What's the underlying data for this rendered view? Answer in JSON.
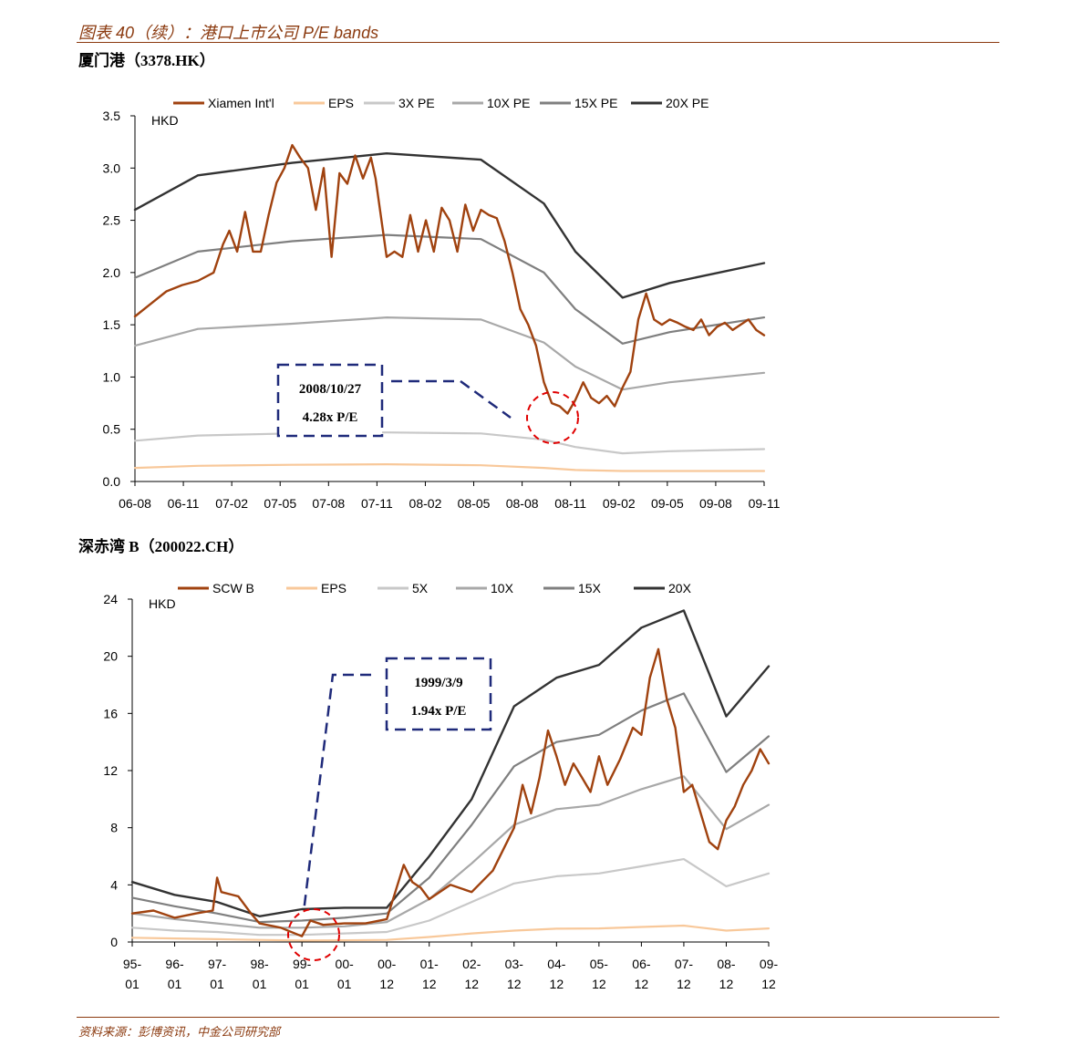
{
  "figure": {
    "title": "图表 40（续）：港口上市公司 P/E bands",
    "source": "资料来源：彭博资讯，中金公司研究部"
  },
  "chart_data": [
    {
      "type": "line",
      "heading": "厦门港（3378.HK）",
      "ylabel": "HKD",
      "ylim": [
        0,
        3.5
      ],
      "yticks": [
        "0.0",
        "0.5",
        "1.0",
        "1.5",
        "2.0",
        "2.5",
        "3.0",
        "3.5"
      ],
      "xticks": [
        "06-08",
        "06-11",
        "07-02",
        "07-05",
        "07-08",
        "07-11",
        "08-02",
        "08-05",
        "08-08",
        "08-11",
        "09-02",
        "09-05",
        "09-08",
        "09-11"
      ],
      "xlim": [
        0,
        40
      ],
      "legend_position": "top",
      "series": [
        {
          "name": "Xiamen Int'l",
          "color": "#a0420f",
          "width": 2.4,
          "x": [
            0,
            1,
            2,
            3,
            4,
            5,
            5.6,
            6,
            6.5,
            7,
            7.5,
            8,
            8.5,
            9,
            9.5,
            10,
            10.5,
            11,
            11.5,
            12,
            12.5,
            13,
            13.5,
            14,
            14.5,
            15,
            15.3,
            16,
            16.5,
            17,
            17.5,
            18,
            18.5,
            19,
            19.5,
            20,
            20.5,
            21,
            21.5,
            22,
            22.5,
            23,
            23.5,
            24,
            24.5,
            25,
            25.5,
            26,
            26.5,
            27,
            27.5,
            28,
            28.5,
            29,
            29.5,
            30,
            30.5,
            31,
            31.5,
            32,
            32.5,
            33,
            33.5,
            34,
            34.5,
            35,
            35.5,
            36,
            36.5,
            37,
            37.5,
            38,
            38.5,
            39,
            39.5,
            40
          ],
          "y": [
            1.58,
            1.7,
            1.82,
            1.88,
            1.92,
            2.0,
            2.27,
            2.4,
            2.2,
            2.58,
            2.2,
            2.2,
            2.55,
            2.86,
            3.0,
            3.22,
            3.1,
            3.0,
            2.6,
            3.0,
            2.15,
            2.95,
            2.85,
            3.12,
            2.9,
            3.1,
            2.9,
            2.15,
            2.2,
            2.15,
            2.55,
            2.2,
            2.5,
            2.2,
            2.62,
            2.5,
            2.2,
            2.65,
            2.4,
            2.6,
            2.55,
            2.52,
            2.3,
            2.0,
            1.65,
            1.5,
            1.3,
            0.95,
            0.75,
            0.72,
            0.65,
            0.78,
            0.95,
            0.8,
            0.75,
            0.82,
            0.72,
            0.9,
            1.05,
            1.55,
            1.8,
            1.55,
            1.5,
            1.55,
            1.52,
            1.48,
            1.45,
            1.55,
            1.4,
            1.48,
            1.52,
            1.45,
            1.5,
            1.55,
            1.45,
            1.4
          ]
        },
        {
          "name": "EPS",
          "color": "#f8c89a",
          "width": 2.2,
          "x": [
            0,
            4,
            10,
            16,
            22,
            26,
            28,
            31,
            34,
            40
          ],
          "y": [
            0.13,
            0.15,
            0.16,
            0.165,
            0.155,
            0.13,
            0.11,
            0.1,
            0.1,
            0.1
          ]
        },
        {
          "name": "3X PE",
          "color": "#c8c8c8",
          "width": 2.2,
          "x": [
            0,
            4,
            10,
            16,
            22,
            26,
            28,
            31,
            34,
            40
          ],
          "y": [
            0.39,
            0.44,
            0.46,
            0.47,
            0.46,
            0.4,
            0.33,
            0.27,
            0.29,
            0.31
          ]
        },
        {
          "name": "10X PE",
          "color": "#a8a8a8",
          "width": 2.2,
          "x": [
            0,
            4,
            10,
            16,
            22,
            26,
            28,
            31,
            34,
            40
          ],
          "y": [
            1.3,
            1.46,
            1.51,
            1.57,
            1.55,
            1.33,
            1.1,
            0.88,
            0.95,
            1.04
          ]
        },
        {
          "name": "15X PE",
          "color": "#7f7f7f",
          "width": 2.2,
          "x": [
            0,
            4,
            10,
            16,
            22,
            26,
            28,
            31,
            34,
            40
          ],
          "y": [
            1.95,
            2.2,
            2.3,
            2.36,
            2.32,
            2.0,
            1.65,
            1.32,
            1.43,
            1.57
          ]
        },
        {
          "name": "20X PE",
          "color": "#333333",
          "width": 2.4,
          "x": [
            0,
            4,
            10,
            16,
            22,
            26,
            28,
            31,
            34,
            40
          ],
          "y": [
            2.6,
            2.93,
            3.05,
            3.14,
            3.08,
            2.66,
            2.2,
            1.76,
            1.9,
            2.09
          ]
        }
      ],
      "annotation": {
        "lines": [
          "2008/10/27",
          "4.28x P/E"
        ]
      }
    },
    {
      "type": "line",
      "heading": "深赤湾 B（200022.CH）",
      "ylabel": "HKD",
      "ylim": [
        0,
        24
      ],
      "yticks": [
        "0",
        "4",
        "8",
        "12",
        "16",
        "20",
        "24"
      ],
      "xticks": [
        "95-01",
        "96-01",
        "97-01",
        "98-01",
        "99-01",
        "00-01",
        "00-12",
        "01-12",
        "02-12",
        "03-12",
        "04-12",
        "05-12",
        "06-12",
        "07-12",
        "08-12",
        "09-12"
      ],
      "xlim": [
        0,
        15
      ],
      "legend_position": "top",
      "series": [
        {
          "name": "SCW B",
          "color": "#a0420f",
          "width": 2.4,
          "x": [
            0,
            0.5,
            1,
            1.5,
            1.9,
            2.0,
            2.1,
            2.5,
            2.8,
            3.0,
            3.5,
            4.0,
            4.2,
            4.5,
            5.0,
            5.5,
            6.0,
            6.2,
            6.4,
            6.6,
            6.8,
            7.0,
            7.5,
            8.0,
            8.5,
            9.0,
            9.2,
            9.4,
            9.6,
            9.8,
            10.0,
            10.2,
            10.4,
            10.6,
            10.8,
            11.0,
            11.2,
            11.5,
            11.8,
            12.0,
            12.2,
            12.4,
            12.6,
            12.8,
            13.0,
            13.2,
            13.4,
            13.6,
            13.8,
            14.0,
            14.2,
            14.4,
            14.6,
            14.8,
            15.0
          ],
          "y": [
            2,
            2.2,
            1.7,
            2.0,
            2.2,
            4.5,
            3.5,
            3.2,
            2.0,
            1.3,
            1.0,
            0.4,
            1.5,
            1.2,
            1.3,
            1.3,
            1.6,
            3.5,
            5.4,
            4.2,
            3.8,
            3.0,
            4.0,
            3.5,
            5.0,
            8.0,
            11.0,
            9.0,
            11.5,
            14.8,
            13.0,
            11.0,
            12.5,
            11.5,
            10.5,
            13.0,
            11.0,
            12.8,
            15.0,
            14.5,
            18.5,
            20.5,
            17.0,
            15.0,
            10.5,
            11.0,
            9.0,
            7.0,
            6.5,
            8.5,
            9.5,
            11.0,
            12.0,
            13.5,
            12.5
          ]
        },
        {
          "name": "EPS",
          "color": "#f8c89a",
          "width": 2.2,
          "x": [
            0,
            1,
            2,
            3,
            4,
            5,
            6,
            7,
            8,
            9,
            10,
            11,
            12,
            13,
            14,
            15
          ],
          "y": [
            0.3,
            0.25,
            0.2,
            0.15,
            0.1,
            0.12,
            0.15,
            0.35,
            0.6,
            0.8,
            0.93,
            0.95,
            1.05,
            1.15,
            0.8,
            0.95
          ]
        },
        {
          "name": "5X",
          "color": "#c8c8c8",
          "width": 2.2,
          "x": [
            0,
            1,
            2,
            3,
            4,
            5,
            6,
            7,
            8,
            9,
            10,
            11,
            12,
            13,
            14,
            15
          ],
          "y": [
            1.0,
            0.8,
            0.7,
            0.5,
            0.5,
            0.6,
            0.7,
            1.5,
            2.8,
            4.1,
            4.6,
            4.8,
            5.3,
            5.8,
            3.9,
            4.8
          ]
        },
        {
          "name": "10X",
          "color": "#a8a8a8",
          "width": 2.2,
          "x": [
            0,
            1,
            2,
            3,
            4,
            5,
            6,
            7,
            8,
            9,
            10,
            11,
            12,
            13,
            14,
            15
          ],
          "y": [
            2.0,
            1.6,
            1.3,
            1.0,
            1.0,
            1.1,
            1.4,
            3.0,
            5.5,
            8.2,
            9.3,
            9.6,
            10.7,
            11.6,
            7.9,
            9.6
          ]
        },
        {
          "name": "15X",
          "color": "#7f7f7f",
          "width": 2.2,
          "x": [
            0,
            1,
            2,
            3,
            4,
            5,
            6,
            7,
            8,
            9,
            10,
            11,
            12,
            13,
            14,
            15
          ],
          "y": [
            3.1,
            2.5,
            2.0,
            1.4,
            1.5,
            1.7,
            2.0,
            4.5,
            8.2,
            12.3,
            14.0,
            14.5,
            16.2,
            17.4,
            11.9,
            14.4
          ]
        },
        {
          "name": "20X",
          "color": "#333333",
          "width": 2.4,
          "x": [
            0,
            1,
            2,
            3,
            4,
            5,
            6,
            7,
            8,
            9,
            10,
            11,
            12,
            13,
            14,
            15
          ],
          "y": [
            4.2,
            3.3,
            2.8,
            1.8,
            2.3,
            2.4,
            2.4,
            6.0,
            10.0,
            16.5,
            18.5,
            19.4,
            22.0,
            23.2,
            15.8,
            19.3
          ]
        }
      ],
      "annotation": {
        "lines": [
          "1999/3/9",
          "1.94x P/E"
        ]
      }
    }
  ]
}
